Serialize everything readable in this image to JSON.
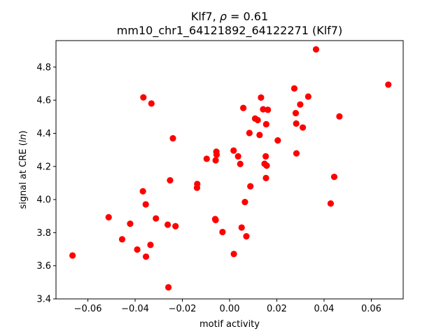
{
  "chart_data": {
    "type": "scatter",
    "title": "Klf7, ρ = 0.61",
    "title_main": "Klf7, ",
    "title_rho": "ρ",
    "title_rho_value": " = 0.61",
    "subtitle": "mm10_chr1_64121892_64122271 (Klf7)",
    "xlabel": "motif activity",
    "ylabel": "signal at CRE (",
    "ylabel_ln": "ln",
    "ylabel_end": ")",
    "xlim": [
      -0.0735,
      0.0735
    ],
    "ylim": [
      3.4,
      4.96
    ],
    "xticks": [
      -0.06,
      -0.04,
      -0.02,
      0.0,
      0.02,
      0.04,
      0.06
    ],
    "xtick_labels": [
      "−0.06",
      "−0.04",
      "−0.02",
      "0.00",
      "0.02",
      "0.04",
      "0.06"
    ],
    "yticks": [
      3.4,
      3.6,
      3.8,
      4.0,
      4.2,
      4.4,
      4.6,
      4.8
    ],
    "ytick_labels": [
      "3.4",
      "3.6",
      "3.8",
      "4.0",
      "4.2",
      "4.4",
      "4.6",
      "4.8"
    ],
    "grid": false,
    "legend": "none",
    "marker_color": "#ff0000",
    "points": [
      [
        -0.0665,
        3.662
      ],
      [
        -0.0512,
        3.893
      ],
      [
        -0.0455,
        3.76
      ],
      [
        -0.0421,
        3.854
      ],
      [
        -0.0391,
        3.698
      ],
      [
        -0.0365,
        4.617
      ],
      [
        -0.0367,
        4.05
      ],
      [
        -0.0355,
        3.971
      ],
      [
        -0.0354,
        3.655
      ],
      [
        -0.0335,
        3.726
      ],
      [
        -0.0331,
        4.58
      ],
      [
        -0.0312,
        3.886
      ],
      [
        -0.0262,
        3.848
      ],
      [
        -0.0259,
        3.47
      ],
      [
        -0.0252,
        4.116
      ],
      [
        -0.024,
        4.37
      ],
      [
        -0.0229,
        3.839
      ],
      [
        -0.0137,
        4.094
      ],
      [
        -0.0138,
        4.071
      ],
      [
        -0.0097,
        4.246
      ],
      [
        -0.0059,
        4.237
      ],
      [
        -0.0056,
        4.289
      ],
      [
        -0.0055,
        4.271
      ],
      [
        -0.0061,
        3.882
      ],
      [
        -0.0059,
        3.876
      ],
      [
        -0.003,
        3.804
      ],
      [
        0.0017,
        4.296
      ],
      [
        0.0018,
        3.671
      ],
      [
        0.0036,
        4.261
      ],
      [
        0.0045,
        4.215
      ],
      [
        0.0051,
        3.831
      ],
      [
        0.0058,
        4.553
      ],
      [
        0.0065,
        3.985
      ],
      [
        0.0071,
        3.778
      ],
      [
        0.0084,
        4.402
      ],
      [
        0.0088,
        4.08
      ],
      [
        0.0108,
        4.489
      ],
      [
        0.0119,
        4.48
      ],
      [
        0.0127,
        4.39
      ],
      [
        0.0133,
        4.616
      ],
      [
        0.0142,
        4.545
      ],
      [
        0.0148,
        4.216
      ],
      [
        0.0154,
        4.13
      ],
      [
        0.0153,
        4.261
      ],
      [
        0.0155,
        4.455
      ],
      [
        0.0157,
        4.205
      ],
      [
        0.0162,
        4.542
      ],
      [
        0.0204,
        4.357
      ],
      [
        0.0274,
        4.671
      ],
      [
        0.028,
        4.522
      ],
      [
        0.0282,
        4.459
      ],
      [
        0.0283,
        4.279
      ],
      [
        0.0299,
        4.574
      ],
      [
        0.031,
        4.435
      ],
      [
        0.0333,
        4.622
      ],
      [
        0.0366,
        4.907
      ],
      [
        0.0428,
        3.976
      ],
      [
        0.0443,
        4.137
      ],
      [
        0.0465,
        4.502
      ],
      [
        0.0672,
        4.694
      ]
    ]
  }
}
